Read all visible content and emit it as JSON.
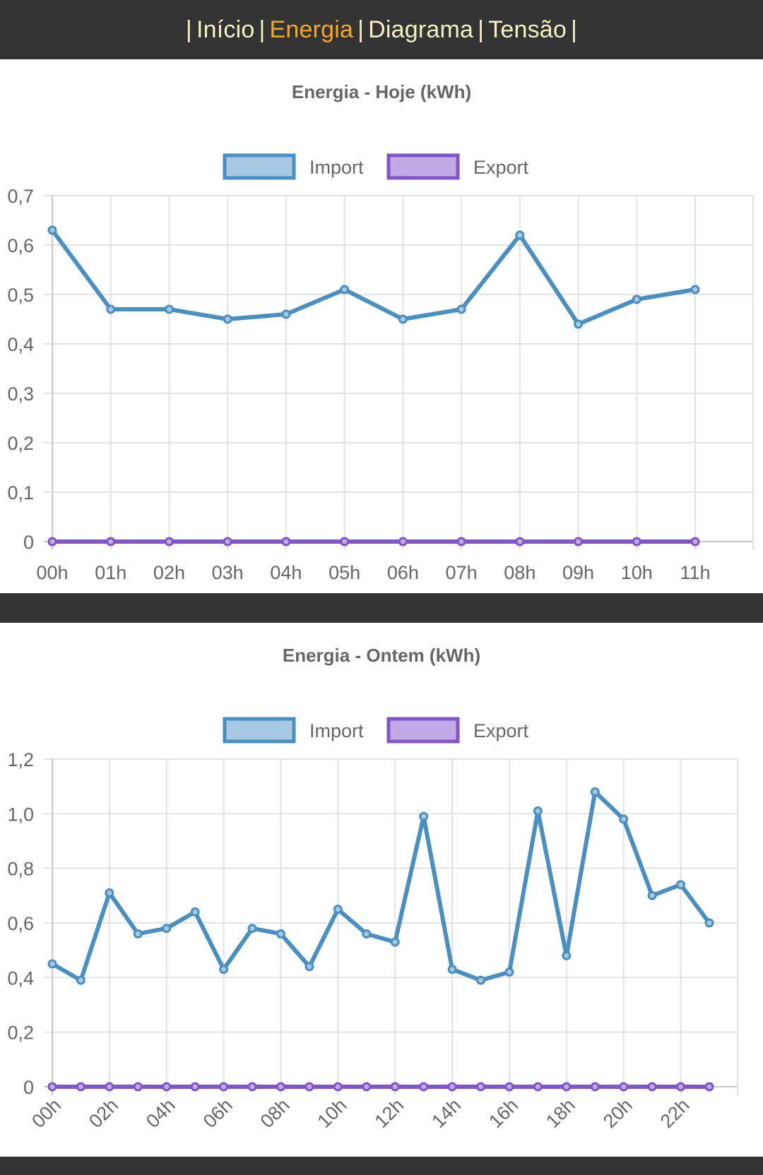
{
  "nav": {
    "items": [
      {
        "label": "Início",
        "active": false
      },
      {
        "label": "Energia",
        "active": true
      },
      {
        "label": "Diagrama",
        "active": false
      },
      {
        "label": "Tensão",
        "active": false
      }
    ],
    "separator": "|"
  },
  "colors": {
    "import_line": "#4a8fc1",
    "import_fill": "#a6c8e3",
    "export_line": "#8155c7",
    "export_fill": "#c2aae8",
    "grid": "#e2e2e2",
    "text": "#666666",
    "nav_active": "#f5a623",
    "nav_text": "#f7f0c0"
  },
  "chart_data": [
    {
      "type": "line",
      "title": "Energia - Hoje (kWh)",
      "legend": [
        "Import",
        "Export"
      ],
      "legend_position": "top-center",
      "x": [
        "00h",
        "01h",
        "02h",
        "03h",
        "04h",
        "05h",
        "06h",
        "07h",
        "08h",
        "09h",
        "10h",
        "11h"
      ],
      "x_slots": 12,
      "ylim": [
        0,
        0.7
      ],
      "y_ticks": [
        "0",
        "0,1",
        "0,2",
        "0,3",
        "0,4",
        "0,5",
        "0,6",
        "0,7"
      ],
      "grid": true,
      "series": [
        {
          "name": "Import",
          "values": [
            0.63,
            0.47,
            0.47,
            0.45,
            0.46,
            0.51,
            0.45,
            0.47,
            0.62,
            0.44,
            0.49,
            0.51
          ]
        },
        {
          "name": "Export",
          "values": [
            0,
            0,
            0,
            0,
            0,
            0,
            0,
            0,
            0,
            0,
            0,
            0
          ]
        }
      ]
    },
    {
      "type": "line",
      "title": "Energia - Ontem (kWh)",
      "legend": [
        "Import",
        "Export"
      ],
      "legend_position": "top-center",
      "x": [
        "00h",
        "01h",
        "02h",
        "03h",
        "04h",
        "05h",
        "06h",
        "07h",
        "08h",
        "09h",
        "10h",
        "11h",
        "12h",
        "13h",
        "14h",
        "15h",
        "16h",
        "17h",
        "18h",
        "19h",
        "20h",
        "21h",
        "22h",
        "23h"
      ],
      "x_tick_labels": [
        "00h",
        "02h",
        "04h",
        "06h",
        "08h",
        "10h",
        "12h",
        "14h",
        "16h",
        "18h",
        "20h",
        "22h"
      ],
      "ylim": [
        0,
        1.2
      ],
      "y_ticks": [
        "0",
        "0,2",
        "0,4",
        "0,6",
        "0,8",
        "1,0",
        "1,2"
      ],
      "grid": true,
      "series": [
        {
          "name": "Import",
          "values": [
            0.45,
            0.39,
            0.71,
            0.56,
            0.58,
            0.64,
            0.43,
            0.58,
            0.56,
            0.44,
            0.65,
            0.56,
            0.53,
            0.99,
            0.43,
            0.39,
            0.42,
            1.01,
            0.48,
            1.08,
            0.98,
            0.7,
            0.74,
            0.6
          ]
        },
        {
          "name": "Export",
          "values": [
            0,
            0,
            0,
            0,
            0,
            0,
            0,
            0,
            0,
            0,
            0,
            0,
            0,
            0,
            0,
            0,
            0,
            0,
            0,
            0,
            0,
            0,
            0,
            0
          ]
        }
      ]
    }
  ]
}
